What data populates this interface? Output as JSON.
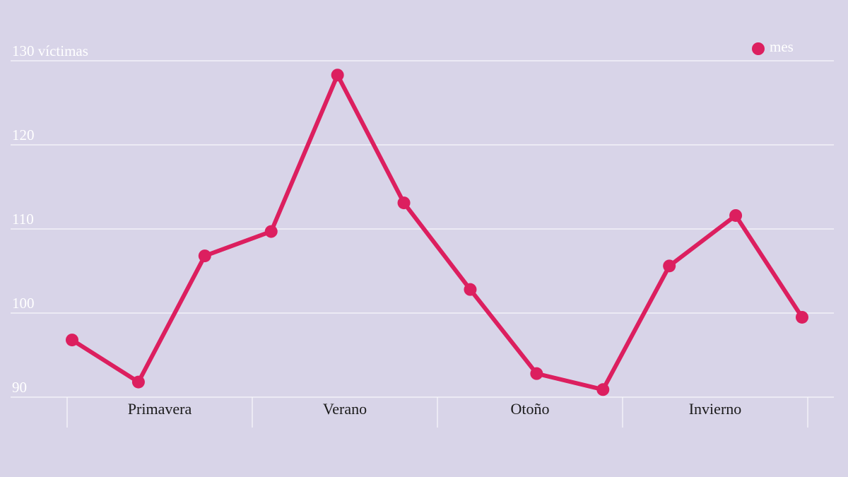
{
  "chart_data": {
    "type": "line",
    "categories": [
      null,
      null,
      null,
      null,
      null,
      null,
      null,
      null,
      null,
      null,
      null,
      null
    ],
    "groups": [
      "Primavera",
      "Verano",
      "Otoño",
      "Invierno"
    ],
    "series": [
      {
        "name": "mes",
        "color": "#dc1f5f",
        "values": [
          96.8,
          91.8,
          106.8,
          109.7,
          128.3,
          113.1,
          102.8,
          92.8,
          90.9,
          105.6,
          111.6,
          99.5
        ]
      }
    ],
    "ylim": [
      90,
      130
    ],
    "yticks": [
      90,
      100,
      110,
      120,
      {
        "value": 130,
        "label": "130 víctimas"
      }
    ],
    "grid": true,
    "legend": "upper right"
  }
}
